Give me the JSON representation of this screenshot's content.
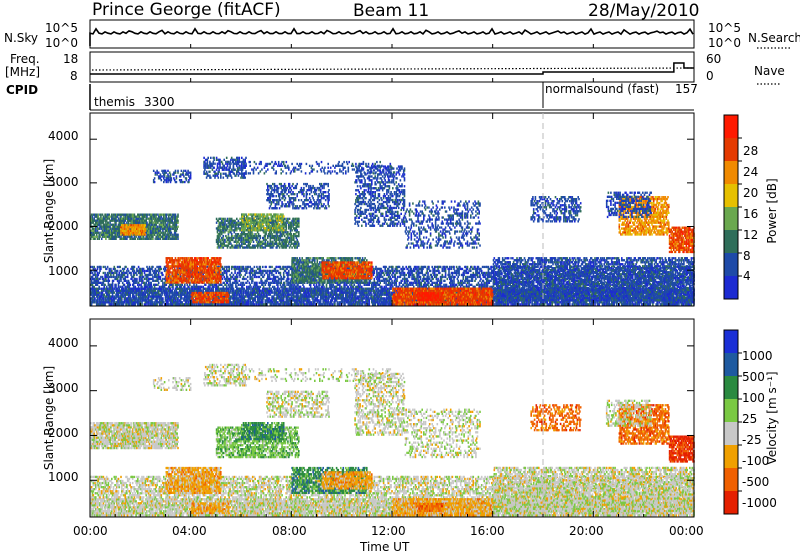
{
  "header": {
    "station": "Prince George (fitACF)",
    "beam": "Beam 11",
    "date": "28/May/2010"
  },
  "top_panels": {
    "nsky_label": "N.Sky",
    "nsky_ticks": [
      "10^5",
      "10^0"
    ],
    "nsearch_label": "N.Search",
    "nsearch_ticks": [
      "10^5",
      "10^0"
    ],
    "freq_label_1": "Freq.",
    "freq_label_2": "[MHz]",
    "freq_ticks": [
      "18",
      "8"
    ],
    "nave_label": "Nave",
    "nave_ticks": [
      "60",
      "0"
    ],
    "cpid_label": "CPID",
    "cpid_segments": [
      {
        "name": "themis",
        "id": "3300",
        "start": "00:00"
      },
      {
        "name": "normalsound (fast)",
        "id": "157",
        "start": "18:00"
      }
    ]
  },
  "power_panel": {
    "ylabel": "Slant Range [km]",
    "yticks": [
      "1000",
      "2000",
      "3000",
      "4000"
    ],
    "colorbar_label": "Power [dB]",
    "colorbar_ticks": [
      "4",
      "8",
      "12",
      "16",
      "20",
      "24",
      "28"
    ],
    "colors": [
      "#1c2bd2",
      "#1e4aa8",
      "#2f6e5a",
      "#6aa84f",
      "#e6c000",
      "#f08a00",
      "#e53a00",
      "#ff1a00"
    ]
  },
  "velocity_panel": {
    "ylabel": "Slant Range [km]",
    "yticks": [
      "1000",
      "2000",
      "3000",
      "4000"
    ],
    "colorbar_label": "Velocity [m s⁻¹]",
    "colorbar_ticks": [
      "1000",
      "500",
      "100",
      "25",
      "-25",
      "-100",
      "-500",
      "-1000"
    ],
    "colors": [
      "#1a2fd6",
      "#1e5aa0",
      "#2a8a40",
      "#7ac943",
      "#c8c8c8",
      "#f0a000",
      "#f06000",
      "#e52000"
    ]
  },
  "xaxis": {
    "label": "Time UT",
    "ticks": [
      "00:00",
      "04:00",
      "08:00",
      "12:00",
      "16:00",
      "20:00",
      "00:00"
    ]
  },
  "chart_data": {
    "type": "heatmap",
    "title": "Prince George (fitACF)",
    "subtitle": "Beam 11 — 28/May/2010",
    "xlabel": "Time UT",
    "ylabel": "Slant Range [km]",
    "x_range_hours": [
      0,
      24
    ],
    "ylim_km": [
      180,
      4600
    ],
    "panels": [
      {
        "name": "Power",
        "units": "dB",
        "range": [
          0,
          30
        ]
      },
      {
        "name": "Velocity",
        "units": "m s⁻¹",
        "range": [
          -1000,
          1000
        ]
      }
    ],
    "grid": false
  }
}
